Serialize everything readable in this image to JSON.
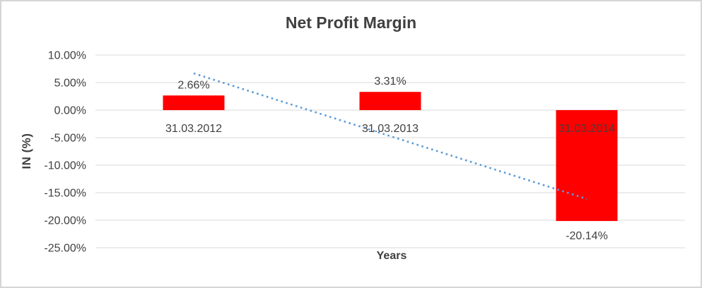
{
  "window": {
    "background": "#FFFFFF",
    "border_color": "#D5D5D5"
  },
  "chart_data": {
    "type": "bar",
    "title": "Net Profit Margin",
    "xlabel": "Years",
    "ylabel": "IN (%)",
    "categories": [
      "31.03.2012",
      "31.03.2013",
      "31.03.2014"
    ],
    "values": [
      2.66,
      3.31,
      -20.14
    ],
    "data_labels": [
      "2.66%",
      "3.31%",
      "-20.14%"
    ],
    "ylim": [
      -25,
      10
    ],
    "ytick_step": 5,
    "ytick_labels": [
      "10.00%",
      "5.00%",
      "0.00%",
      "-5.00%",
      "-10.00%",
      "-15.00%",
      "-20.00%",
      "-25.00%"
    ],
    "grid": true,
    "legend": false,
    "trendline": {
      "type": "linear",
      "style": "dotted",
      "x": [
        0,
        2
      ],
      "y": [
        6.68,
        -16.12
      ],
      "color": "#5B9BD5"
    },
    "colors": {
      "bar": "#FF0000",
      "grid": "#D9D9D9",
      "text": "#404040",
      "title": "#404040"
    }
  }
}
